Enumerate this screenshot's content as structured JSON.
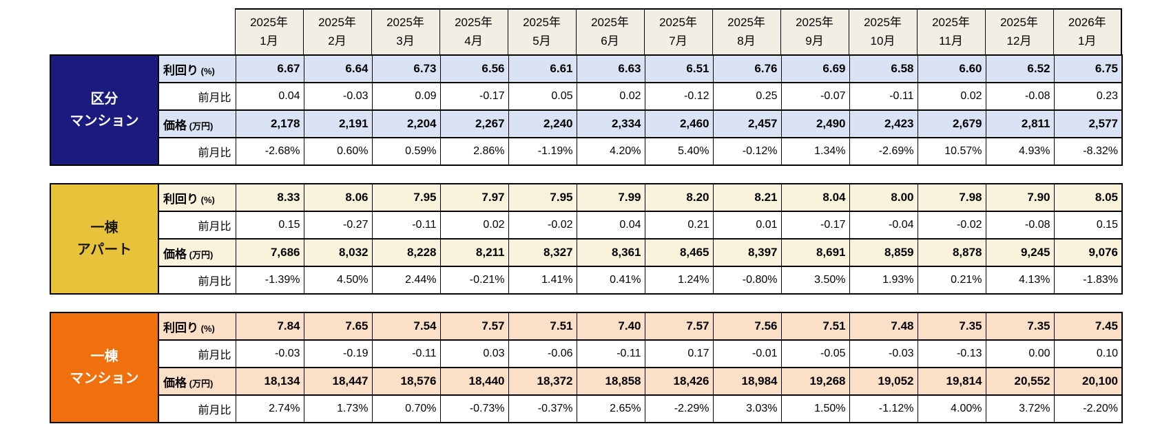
{
  "colors": {
    "month_header_bg": "#f1eee4",
    "border": "#000000",
    "section1_header_bg": "#1b1a7e",
    "section1_band_bg": "#d9e3f3",
    "section2_header_bg": "#e9c23b",
    "section2_band_bg": "#faf3dc",
    "section3_header_bg": "#f0700e",
    "section3_band_bg": "#fbdfc7"
  },
  "chart_data": {
    "type": "table",
    "columns": [
      {
        "year": "2025年",
        "month": "1月"
      },
      {
        "year": "2025年",
        "month": "2月"
      },
      {
        "year": "2025年",
        "month": "3月"
      },
      {
        "year": "2025年",
        "month": "4月"
      },
      {
        "year": "2025年",
        "month": "5月"
      },
      {
        "year": "2025年",
        "month": "6月"
      },
      {
        "year": "2025年",
        "month": "7月"
      },
      {
        "year": "2025年",
        "month": "8月"
      },
      {
        "year": "2025年",
        "month": "9月"
      },
      {
        "year": "2025年",
        "month": "10月"
      },
      {
        "year": "2025年",
        "month": "11月"
      },
      {
        "year": "2025年",
        "month": "12月"
      },
      {
        "year": "2026年",
        "month": "1月"
      }
    ],
    "sections": [
      {
        "id": "kubun-mansion",
        "category": "区分マンション",
        "category_lines": [
          "区分",
          "マンション"
        ],
        "header_bg": "#1b1a7e",
        "header_fg": "#ffffff",
        "band_bg": "#d9e3f3",
        "rows": [
          {
            "label_main": "利回り",
            "label_suffix": "(%)",
            "bold": true,
            "values": [
              "6.67",
              "6.64",
              "6.73",
              "6.56",
              "6.61",
              "6.63",
              "6.51",
              "6.76",
              "6.69",
              "6.58",
              "6.60",
              "6.52",
              "6.75"
            ]
          },
          {
            "label_main": "前月比",
            "label_suffix": "",
            "bold": false,
            "values": [
              "0.04",
              "-0.03",
              "0.09",
              "-0.17",
              "0.05",
              "0.02",
              "-0.12",
              "0.25",
              "-0.07",
              "-0.11",
              "0.02",
              "-0.08",
              "0.23"
            ]
          },
          {
            "label_main": "価格",
            "label_suffix": "(万円)",
            "bold": true,
            "values": [
              "2,178",
              "2,191",
              "2,204",
              "2,267",
              "2,240",
              "2,334",
              "2,460",
              "2,457",
              "2,490",
              "2,423",
              "2,679",
              "2,811",
              "2,577"
            ]
          },
          {
            "label_main": "前月比",
            "label_suffix": "",
            "bold": false,
            "values": [
              "-2.68%",
              "0.60%",
              "0.59%",
              "2.86%",
              "-1.19%",
              "4.20%",
              "5.40%",
              "-0.12%",
              "1.34%",
              "-2.69%",
              "10.57%",
              "4.93%",
              "-8.32%"
            ]
          }
        ]
      },
      {
        "id": "itto-apart",
        "category": "一棟アパート",
        "category_lines": [
          "一棟",
          "アパート"
        ],
        "header_bg": "#e9c23b",
        "header_fg": "#1a1a1a",
        "band_bg": "#faf3dc",
        "rows": [
          {
            "label_main": "利回り",
            "label_suffix": "(%)",
            "bold": true,
            "values": [
              "8.33",
              "8.06",
              "7.95",
              "7.97",
              "7.95",
              "7.99",
              "8.20",
              "8.21",
              "8.04",
              "8.00",
              "7.98",
              "7.90",
              "8.05"
            ]
          },
          {
            "label_main": "前月比",
            "label_suffix": "",
            "bold": false,
            "values": [
              "0.15",
              "-0.27",
              "-0.11",
              "0.02",
              "-0.02",
              "0.04",
              "0.21",
              "0.01",
              "-0.17",
              "-0.04",
              "-0.02",
              "-0.08",
              "0.15"
            ]
          },
          {
            "label_main": "価格",
            "label_suffix": "(万円)",
            "bold": true,
            "values": [
              "7,686",
              "8,032",
              "8,228",
              "8,211",
              "8,327",
              "8,361",
              "8,465",
              "8,397",
              "8,691",
              "8,859",
              "8,878",
              "9,245",
              "9,076"
            ]
          },
          {
            "label_main": "前月比",
            "label_suffix": "",
            "bold": false,
            "values": [
              "-1.39%",
              "4.50%",
              "2.44%",
              "-0.21%",
              "1.41%",
              "0.41%",
              "1.24%",
              "-0.80%",
              "3.50%",
              "1.93%",
              "0.21%",
              "4.13%",
              "-1.83%"
            ]
          }
        ]
      },
      {
        "id": "itto-mansion",
        "category": "一棟マンション",
        "category_lines": [
          "一棟",
          "マンション"
        ],
        "header_bg": "#f0700e",
        "header_fg": "#ffffff",
        "band_bg": "#fbdfc7",
        "rows": [
          {
            "label_main": "利回り",
            "label_suffix": "(%)",
            "bold": true,
            "values": [
              "7.84",
              "7.65",
              "7.54",
              "7.57",
              "7.51",
              "7.40",
              "7.57",
              "7.56",
              "7.51",
              "7.48",
              "7.35",
              "7.35",
              "7.45"
            ]
          },
          {
            "label_main": "前月比",
            "label_suffix": "",
            "bold": false,
            "values": [
              "-0.03",
              "-0.19",
              "-0.11",
              "0.03",
              "-0.06",
              "-0.11",
              "0.17",
              "-0.01",
              "-0.05",
              "-0.03",
              "-0.13",
              "0.00",
              "0.10"
            ]
          },
          {
            "label_main": "価格",
            "label_suffix": "(万円)",
            "bold": true,
            "values": [
              "18,134",
              "18,447",
              "18,576",
              "18,440",
              "18,372",
              "18,858",
              "18,426",
              "18,984",
              "19,268",
              "19,052",
              "19,814",
              "20,552",
              "20,100"
            ]
          },
          {
            "label_main": "前月比",
            "label_suffix": "",
            "bold": false,
            "values": [
              "2.74%",
              "1.73%",
              "0.70%",
              "-0.73%",
              "-0.37%",
              "2.65%",
              "-2.29%",
              "3.03%",
              "1.50%",
              "-1.12%",
              "4.00%",
              "3.72%",
              "-2.20%"
            ]
          }
        ]
      }
    ]
  }
}
